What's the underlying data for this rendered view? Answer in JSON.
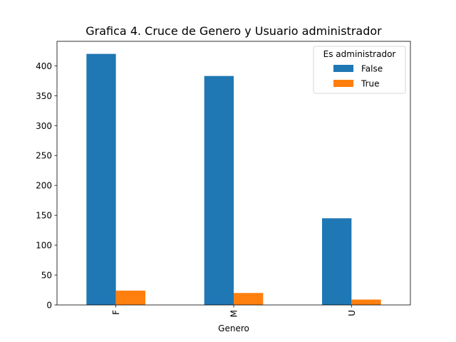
{
  "chart_data": {
    "type": "bar",
    "title": "Grafica 4. Cruce de Genero y Usuario administrador",
    "xlabel": "Genero",
    "ylabel": "",
    "categories": [
      "F",
      "M",
      "U"
    ],
    "series": [
      {
        "name": "False",
        "values": [
          420,
          383,
          145
        ],
        "color": "#1f77b4"
      },
      {
        "name": "True",
        "values": [
          24,
          20,
          9
        ],
        "color": "#ff7f0e"
      }
    ],
    "ylim": [
      0,
      441
    ],
    "yticks": [
      0,
      50,
      100,
      150,
      200,
      250,
      300,
      350,
      400
    ],
    "grid": false,
    "legend": {
      "title": "Es administrador",
      "placement": "top-right"
    }
  }
}
